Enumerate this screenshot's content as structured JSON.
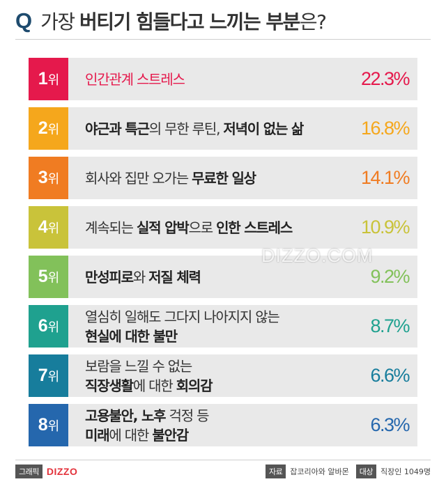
{
  "title": {
    "q": "Q",
    "plain_before": "가장 ",
    "bold": "버티기 힘들다고 느끼는 부분",
    "plain_after": "은?"
  },
  "chart_data": {
    "type": "bar",
    "categories": [
      "인간관계 스트레스",
      "야근과 특근의 무한 루틴, 저녁이 없는 삶",
      "회사와 집만 오가는 무료한 일상",
      "계속되는 실적 압박으로 인한 스트레스",
      "만성피로와 저질 체력",
      "열심히 일해도 그다지 나아지지 않는 현실에 대한 불만",
      "보람을 느낄 수 없는 직장생활에 대한 회의감",
      "고용불안, 노후 걱정 등 미래에 대한 불안감"
    ],
    "values": [
      22.3,
      16.8,
      14.1,
      10.9,
      9.2,
      8.7,
      6.6,
      6.3
    ],
    "unit": "%",
    "items": [
      {
        "rank_num": "1",
        "rank_suffix": "위",
        "color": "#e5194c",
        "value_color": "#e5194c",
        "line1": [
          [
            "b",
            "인간관계 스트레스"
          ]
        ],
        "line2": [],
        "value_text": "22.3%",
        "label_color": "#e5194c"
      },
      {
        "rank_num": "2",
        "rank_suffix": "위",
        "color": "#f5a71c",
        "value_color": "#f5a71c",
        "line1": [
          [
            "b",
            "야근과 특근"
          ],
          [
            "n",
            "의 무한 루틴, "
          ],
          [
            "b",
            "저녁이 없는 삶"
          ]
        ],
        "line2": [],
        "value_text": "16.8%"
      },
      {
        "rank_num": "3",
        "rank_suffix": "위",
        "color": "#f07c22",
        "value_color": "#f07c22",
        "line1": [
          [
            "n",
            "회사와 집만 오가는 "
          ],
          [
            "b",
            "무료한 일상"
          ]
        ],
        "line2": [],
        "value_text": "14.1%"
      },
      {
        "rank_num": "4",
        "rank_suffix": "위",
        "color": "#c9c33a",
        "value_color": "#c9c33a",
        "line1": [
          [
            "n",
            "계속되는 "
          ],
          [
            "b",
            "실적 압박"
          ],
          [
            "n",
            "으로 "
          ],
          [
            "b",
            "인한 스트레스"
          ]
        ],
        "line2": [],
        "value_text": "10.9%"
      },
      {
        "rank_num": "5",
        "rank_suffix": "위",
        "color": "#82c15a",
        "value_color": "#82c15a",
        "line1": [
          [
            "b",
            "만성피로"
          ],
          [
            "n",
            "와 "
          ],
          [
            "b",
            "저질 체력"
          ]
        ],
        "line2": [],
        "value_text": "9.2%"
      },
      {
        "rank_num": "6",
        "rank_suffix": "위",
        "color": "#1fa18f",
        "value_color": "#1fa18f",
        "line1": [
          [
            "n",
            "열심히 일해도 그다지 나아지지 않는"
          ]
        ],
        "line2": [
          [
            "b",
            "현실에 대한 불만"
          ]
        ],
        "value_text": "8.7%"
      },
      {
        "rank_num": "7",
        "rank_suffix": "위",
        "color": "#177d9c",
        "value_color": "#177d9c",
        "line1": [
          [
            "n",
            "보람을 느낄 수 없는"
          ]
        ],
        "line2": [
          [
            "b",
            "직장생활"
          ],
          [
            "n",
            "에 대한 "
          ],
          [
            "b",
            "회의감"
          ]
        ],
        "value_text": "6.6%"
      },
      {
        "rank_num": "8",
        "rank_suffix": "위",
        "color": "#2567ad",
        "value_color": "#2567ad",
        "line1": [
          [
            "b",
            "고용불안, 노후"
          ],
          [
            "n",
            " 걱정 등"
          ]
        ],
        "line2": [
          [
            "b",
            "미래"
          ],
          [
            "n",
            "에 대한 "
          ],
          [
            "b",
            "불안감"
          ]
        ],
        "value_text": "6.3%"
      }
    ]
  },
  "watermark": "DIZZO.COM",
  "footer": {
    "graphic_label": "그래픽",
    "logo": "DIZZO",
    "source_label": "자료",
    "source_text": "잡코리아와 알바몬",
    "target_label": "대상",
    "target_text": "직장인 1049명"
  }
}
